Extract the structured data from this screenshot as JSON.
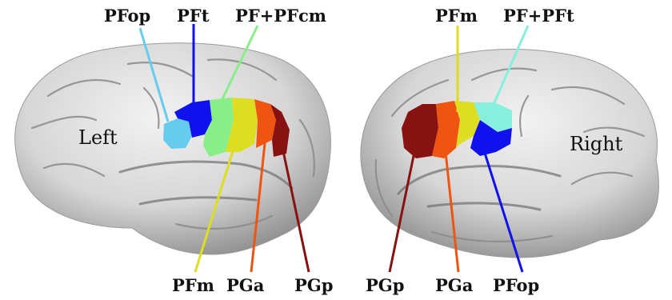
{
  "colors": {
    "PFop": "#66ccee",
    "PFt": "#1111ee",
    "PF+PFcm": "#88ee88",
    "PFm": "#dddd22",
    "PGa": "#ee5511",
    "PGp": "#881111",
    "PF+PFt": "#88eedd",
    "brain_fill": "#d8d8d8",
    "brain_shade": "#a0a0a0"
  },
  "left_hemisphere": {
    "side_label": "Left",
    "labels": {
      "pfop": "PFop",
      "pft": "PFt",
      "pf_pfcm": "PF+PFcm",
      "pfm": "PFm",
      "pga": "PGa",
      "pgp": "PGp"
    }
  },
  "right_hemisphere": {
    "side_label": "Right",
    "labels": {
      "pfm": "PFm",
      "pf_pft": "PF+PFt",
      "pgp": "PGp",
      "pga": "PGa",
      "pfop": "PFop"
    }
  }
}
